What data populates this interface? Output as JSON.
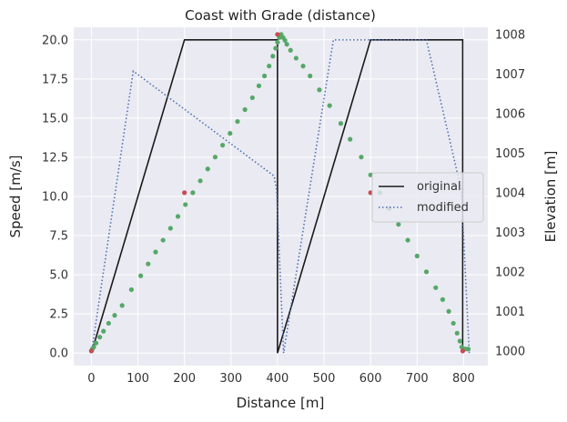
{
  "chart_data": {
    "type": "line",
    "title": "Coast with Grade (distance)",
    "xlabel": "Distance [m]",
    "ylabel": "Speed [m/s]",
    "y2label": "Elevation [m]",
    "xlim": [
      -38,
      852
    ],
    "ylim": [
      -0.8,
      20.8
    ],
    "y2lim": [
      999.63,
      1008.18
    ],
    "x_ticks": [
      0,
      100,
      200,
      300,
      400,
      500,
      600,
      700,
      800
    ],
    "y_ticks": [
      0.0,
      2.5,
      5.0,
      7.5,
      10.0,
      12.5,
      15.0,
      17.5,
      20.0
    ],
    "y2_ticks": [
      1000,
      1001,
      1002,
      1003,
      1004,
      1005,
      1006,
      1007,
      1008
    ],
    "grid": true,
    "legend_position": "right",
    "colors": {
      "plot_bg": "#eaeaf2",
      "grid": "#ffffff",
      "original": "#1a1a1a",
      "modified": "#4c72b0",
      "elevation_points": "#55a868",
      "marker_points": "#c44e52"
    },
    "series": [
      {
        "name": "original",
        "axis": "left",
        "style": "solid",
        "x": [
          0,
          200,
          400,
          400,
          600,
          798,
          798
        ],
        "y": [
          0,
          20,
          20,
          0,
          20,
          20,
          0
        ]
      },
      {
        "name": "modified",
        "axis": "left",
        "style": "dotted",
        "x": [
          0,
          90,
          393,
          398,
          413,
          520,
          720,
          795,
          812
        ],
        "y": [
          0,
          18,
          11.3,
          10.4,
          0,
          20,
          20,
          10.4,
          0
        ]
      },
      {
        "axis": "right",
        "style": "points",
        "x": [
          0,
          2,
          5,
          10,
          18,
          26,
          37,
          50,
          66,
          86,
          106,
          122,
          138,
          154,
          170,
          186,
          202,
          218,
          234,
          250,
          266,
          282,
          298,
          314,
          330,
          346,
          360,
          372,
          382,
          390,
          396,
          400,
          404,
          408,
          412,
          416,
          420,
          428,
          440,
          455,
          470,
          490,
          512,
          536,
          556,
          580,
          600,
          620,
          640,
          660,
          680,
          700,
          720,
          740,
          755,
          768,
          778,
          786,
          792,
          796,
          800,
          804,
          810
        ],
        "y": [
          1000,
          1000.05,
          1000.1,
          1000.2,
          1000.35,
          1000.5,
          1000.7,
          1000.9,
          1001.15,
          1001.55,
          1001.9,
          1002.2,
          1002.5,
          1002.8,
          1003.1,
          1003.4,
          1003.7,
          1004.0,
          1004.3,
          1004.6,
          1004.9,
          1005.2,
          1005.5,
          1005.8,
          1006.1,
          1006.4,
          1006.7,
          1006.95,
          1007.2,
          1007.45,
          1007.65,
          1007.8,
          1007.92,
          1008.0,
          1007.92,
          1007.85,
          1007.75,
          1007.6,
          1007.4,
          1007.2,
          1006.95,
          1006.6,
          1006.2,
          1005.75,
          1005.35,
          1004.9,
          1004.45,
          1004.0,
          1003.6,
          1003.2,
          1002.8,
          1002.4,
          1002.0,
          1001.6,
          1001.3,
          1001.0,
          1000.7,
          1000.45,
          1000.25,
          1000.1,
          1000.05,
          1000.05,
          1000.05
        ]
      },
      {
        "axis": "right",
        "style": "points",
        "x": [
          0,
          200,
          400,
          600,
          798
        ],
        "y": [
          1000,
          1004,
          1008,
          1004,
          1000
        ]
      }
    ]
  }
}
